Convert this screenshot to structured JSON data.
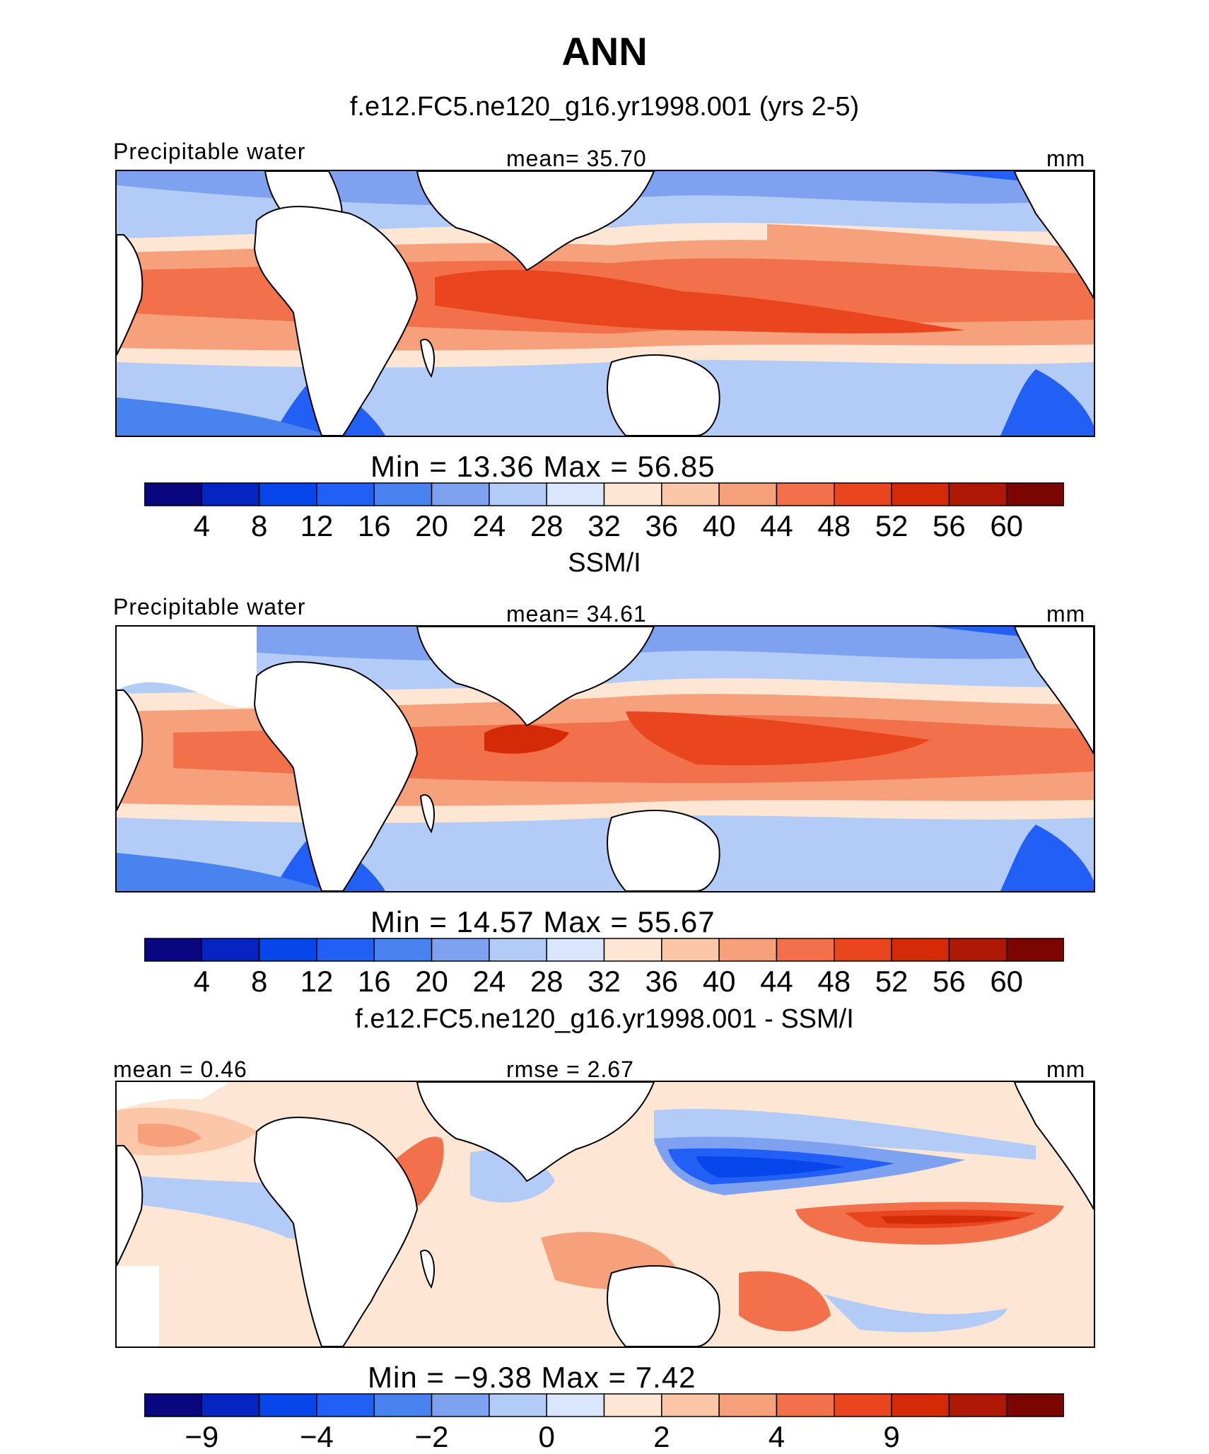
{
  "page": {
    "title": "ANN"
  },
  "panels": [
    {
      "subtitle": "f.e12.FC5.ne120_g16.yr1998.001 (yrs 2-5)",
      "left_label": "Precipitable water",
      "center_label": "mean=   35.70",
      "units": "mm",
      "stats": "Min  =   13.36  Max  =   56.85",
      "colorbar_ticks": [
        "4",
        "8",
        "12",
        "16",
        "20",
        "24",
        "28",
        "32",
        "36",
        "40",
        "44",
        "48",
        "52",
        "56",
        "60"
      ]
    },
    {
      "subtitle": "SSM/I",
      "left_label": "Precipitable water",
      "center_label": "mean=   34.61",
      "units": "mm",
      "stats": "Min  =   14.57  Max  =   55.67",
      "colorbar_ticks": [
        "4",
        "8",
        "12",
        "16",
        "20",
        "24",
        "28",
        "32",
        "36",
        "40",
        "44",
        "48",
        "52",
        "56",
        "60"
      ]
    },
    {
      "subtitle": "f.e12.FC5.ne120_g16.yr1998.001 - SSM/I",
      "left_label": "mean  =    0.46",
      "center_label": "rmse  =    2.67",
      "units": "mm",
      "stats": "Min  =   −9.38  Max  =     7.42",
      "colorbar_ticks": [
        "−9",
        "−4",
        "−2",
        "0",
        "2",
        "4",
        "9"
      ]
    }
  ],
  "chart_data": [
    {
      "type": "heatmap",
      "title": "f.e12.FC5.ne120_g16.yr1998.001 (yrs 2-5)",
      "variable": "Precipitable water",
      "units": "mm",
      "mean": 35.7,
      "min": 13.36,
      "max": 56.85,
      "contour_levels": [
        4,
        8,
        12,
        16,
        20,
        24,
        28,
        32,
        36,
        40,
        44,
        48,
        52,
        56,
        60
      ]
    },
    {
      "type": "heatmap",
      "title": "SSM/I",
      "variable": "Precipitable water",
      "units": "mm",
      "mean": 34.61,
      "min": 14.57,
      "max": 55.67,
      "contour_levels": [
        4,
        8,
        12,
        16,
        20,
        24,
        28,
        32,
        36,
        40,
        44,
        48,
        52,
        56,
        60
      ]
    },
    {
      "type": "heatmap",
      "title": "f.e12.FC5.ne120_g16.yr1998.001 - SSM/I",
      "units": "mm",
      "mean": 0.46,
      "rmse": 2.67,
      "min": -9.38,
      "max": 7.42,
      "contour_levels": [
        -9,
        -6,
        -4,
        -3,
        -2,
        -1,
        0,
        1,
        2,
        3,
        4,
        6,
        9
      ],
      "labeled_levels": [
        -9,
        -4,
        -2,
        0,
        2,
        4,
        9
      ]
    }
  ],
  "colors": {
    "colorbar": [
      "#08077f",
      "#0524c1",
      "#0646ea",
      "#2260f5",
      "#4883f0",
      "#7ea2ef",
      "#b3cbf7",
      "#d9e6fb",
      "#fde6d4",
      "#fbc7a8",
      "#f7a07c",
      "#f2704a",
      "#e9461f",
      "#d52a08",
      "#ad1807",
      "#7b0501"
    ]
  }
}
